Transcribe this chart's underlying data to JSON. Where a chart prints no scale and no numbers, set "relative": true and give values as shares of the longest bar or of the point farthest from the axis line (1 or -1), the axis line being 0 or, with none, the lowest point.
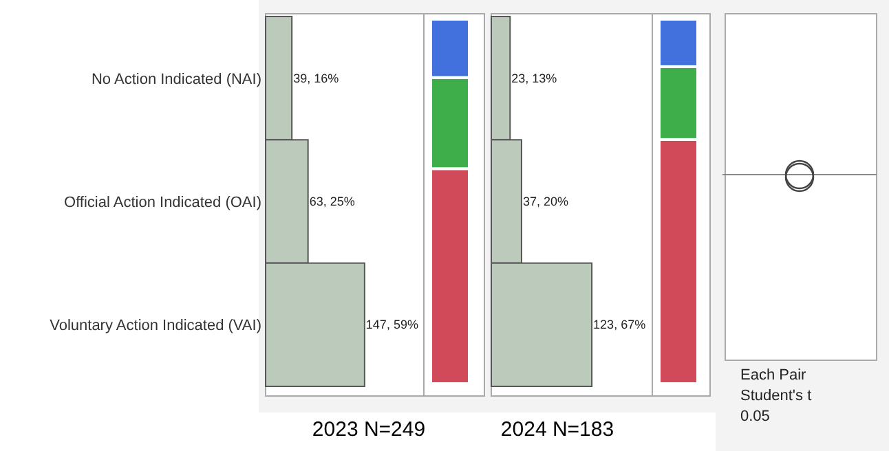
{
  "chart_data": [
    {
      "type": "bar",
      "orientation": "horizontal",
      "title": "2023 N=249",
      "categories": [
        "No Action Indicated (NAI)",
        "Official Action Indicated (OAI)",
        "Voluntary Action Indicated (VAI)"
      ],
      "values": [
        39,
        63,
        147
      ],
      "value_labels": [
        "39, 16%",
        "63, 25%",
        "147, 59%"
      ],
      "color": "#bccabb",
      "xlim": [
        0,
        235
      ],
      "tick_labels": "y"
    },
    {
      "type": "bar",
      "stacked": true,
      "relative": true,
      "categories": [
        null
      ],
      "tick_labels": false,
      "series": [
        {
          "color": "#d14a5a",
          "values": [
            0.59
          ]
        },
        {
          "color": "#3dae4a",
          "values": [
            0.25
          ]
        },
        {
          "color": "#4270dc",
          "values": [
            0.16
          ]
        }
      ]
    },
    {
      "type": "bar",
      "orientation": "horizontal",
      "title": "2024 N=183",
      "categories": [
        null,
        null,
        null
      ],
      "values": [
        23,
        37,
        123
      ],
      "value_labels": [
        "23, 13%",
        "37, 20%",
        "123, 67%"
      ],
      "color": "#bccabb",
      "xlim": [
        0,
        197
      ],
      "tick_labels": false
    },
    {
      "type": "bar",
      "stacked": true,
      "relative": true,
      "categories": [
        null
      ],
      "tick_labels": false,
      "series": [
        {
          "color": "#d14a5a",
          "values": [
            0.67
          ]
        },
        {
          "color": "#3dae4a",
          "values": [
            0.2
          ]
        },
        {
          "color": "#4270dc",
          "values": [
            0.13
          ]
        }
      ]
    },
    {
      "type": "other",
      "annotations": [
        "Each Pair",
        "Student's t",
        "0.05"
      ]
    }
  ]
}
